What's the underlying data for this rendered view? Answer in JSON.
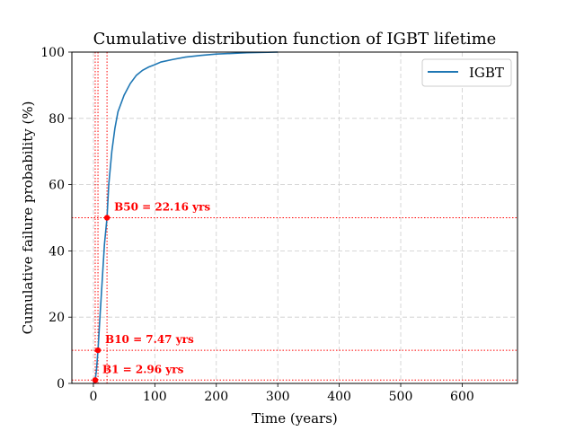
{
  "chart_data": {
    "type": "line",
    "title": "Cumulative distribution function of IGBT lifetime",
    "xlabel": "Time (years)",
    "ylabel": "Cumulative failure probability (%)",
    "xlim": [
      -35,
      690
    ],
    "ylim": [
      0,
      100
    ],
    "xticks": [
      0,
      100,
      200,
      300,
      400,
      500,
      600
    ],
    "yticks": [
      0,
      20,
      40,
      60,
      80,
      100
    ],
    "grid": true,
    "legend_position": "top-right",
    "series": [
      {
        "name": "IGBT",
        "color": "#1f77b4",
        "x": [
          0,
          2.96,
          5,
          7.47,
          10,
          15,
          18,
          22.16,
          25,
          30,
          35,
          40,
          50,
          60,
          70,
          80,
          90,
          100,
          110,
          130,
          150,
          175,
          200,
          250,
          300
        ],
        "y": [
          0,
          1,
          4,
          10,
          18,
          33,
          42,
          50,
          60,
          70,
          77,
          82,
          87,
          90.5,
          93,
          94.5,
          95.5,
          96.2,
          97,
          97.8,
          98.5,
          99,
          99.4,
          99.8,
          100
        ]
      }
    ],
    "markers": [
      {
        "label": "B1 = 2.96 yrs",
        "x": 2.96,
        "y": 1
      },
      {
        "label": "B10 = 7.47 yrs",
        "x": 7.47,
        "y": 10
      },
      {
        "label": "B50 = 22.16 yrs",
        "x": 22.16,
        "y": 50
      }
    ],
    "marker_color": "#ff0000"
  }
}
